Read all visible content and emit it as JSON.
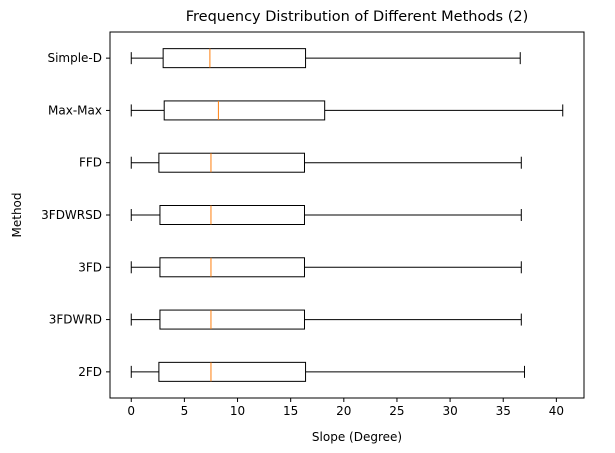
{
  "chart_data": {
    "type": "boxplot",
    "orientation": "horizontal",
    "title": "Frequency Distribution of Different Methods (2)",
    "xlabel": "Slope (Degree)",
    "ylabel": "Method",
    "xlim": [
      -2.0,
      42.6
    ],
    "xticks": [
      0,
      5,
      10,
      15,
      20,
      25,
      30,
      35,
      40
    ],
    "xtick_labels": [
      "0",
      "5",
      "10",
      "15",
      "20",
      "25",
      "30",
      "35",
      "40"
    ],
    "grid": false,
    "box_color": "#000000",
    "median_color": "#ff7f0e",
    "categories": [
      "2FD",
      "3FDWRD",
      "3FD",
      "3FDWRSD",
      "FFD",
      "Max-Max",
      "Simple-D"
    ],
    "boxes": [
      {
        "name": "2FD",
        "whisker_low": 0,
        "q1": 2.6,
        "median": 7.5,
        "q3": 16.4,
        "whisker_high": 37.0
      },
      {
        "name": "3FDWRD",
        "whisker_low": 0,
        "q1": 2.7,
        "median": 7.5,
        "q3": 16.3,
        "whisker_high": 36.7
      },
      {
        "name": "3FD",
        "whisker_low": 0,
        "q1": 2.7,
        "median": 7.5,
        "q3": 16.3,
        "whisker_high": 36.7
      },
      {
        "name": "3FDWRSD",
        "whisker_low": 0,
        "q1": 2.7,
        "median": 7.5,
        "q3": 16.3,
        "whisker_high": 36.7
      },
      {
        "name": "FFD",
        "whisker_low": 0,
        "q1": 2.6,
        "median": 7.5,
        "q3": 16.3,
        "whisker_high": 36.7
      },
      {
        "name": "Max-Max",
        "whisker_low": 0,
        "q1": 3.1,
        "median": 8.2,
        "q3": 18.2,
        "whisker_high": 40.6
      },
      {
        "name": "Simple-D",
        "whisker_low": 0,
        "q1": 3.0,
        "median": 7.4,
        "q3": 16.4,
        "whisker_high": 36.6
      }
    ]
  }
}
